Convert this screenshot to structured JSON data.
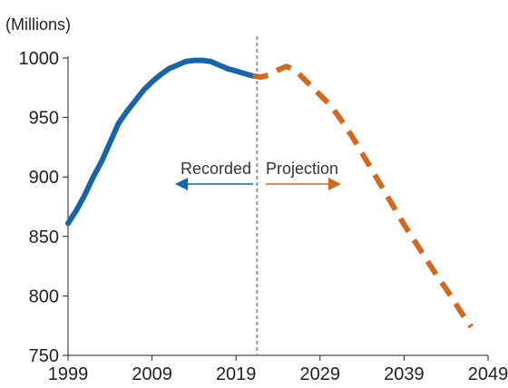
{
  "chart_data": {
    "type": "line",
    "unit_label": "(Millions)",
    "xlabel": "",
    "ylabel": "",
    "xlim": [
      1999,
      2049
    ],
    "ylim": [
      750,
      1000
    ],
    "x_ticks": [
      1999,
      2009,
      2019,
      2029,
      2039,
      2049
    ],
    "y_ticks": [
      750,
      800,
      850,
      900,
      950,
      1000
    ],
    "grid": false,
    "divider_year": 2021.5,
    "series": [
      {
        "style": "solid",
        "color": "#1565a8",
        "points": [
          [
            1999,
            861
          ],
          [
            2000,
            872
          ],
          [
            2001,
            885
          ],
          [
            2002,
            900
          ],
          [
            2003,
            913
          ],
          [
            2004,
            929
          ],
          [
            2005,
            945
          ],
          [
            2006,
            955
          ],
          [
            2007,
            964
          ],
          [
            2008,
            973
          ],
          [
            2009,
            980
          ],
          [
            2010,
            986
          ],
          [
            2011,
            991
          ],
          [
            2012,
            994
          ],
          [
            2013,
            997
          ],
          [
            2014,
            998
          ],
          [
            2015,
            998
          ],
          [
            2016,
            997
          ],
          [
            2017,
            994
          ],
          [
            2018,
            991
          ],
          [
            2019,
            989
          ],
          [
            2020,
            987
          ],
          [
            2021,
            985
          ]
        ]
      },
      {
        "style": "dashed",
        "color": "#d2691e",
        "points": [
          [
            2021,
            985
          ],
          [
            2022,
            984
          ],
          [
            2023,
            986
          ],
          [
            2024,
            990
          ],
          [
            2025,
            993
          ],
          [
            2026,
            990
          ],
          [
            2027,
            983
          ],
          [
            2028,
            976
          ],
          [
            2029,
            969
          ],
          [
            2030,
            962
          ],
          [
            2031,
            953
          ],
          [
            2032,
            943
          ],
          [
            2033,
            932
          ],
          [
            2034,
            920
          ],
          [
            2035,
            908
          ],
          [
            2036,
            896
          ],
          [
            2037,
            884
          ],
          [
            2038,
            872
          ],
          [
            2039,
            860
          ],
          [
            2040,
            849
          ],
          [
            2041,
            838
          ],
          [
            2042,
            827
          ],
          [
            2043,
            816
          ],
          [
            2044,
            806
          ],
          [
            2045,
            795
          ],
          [
            2046,
            784
          ],
          [
            2047,
            774
          ]
        ]
      }
    ],
    "annotations": {
      "recorded_label": "Recorded",
      "projection_label": "Projection",
      "recorded_arrow_color": "#1565a8",
      "projection_arrow_color": "#d2691e"
    }
  }
}
